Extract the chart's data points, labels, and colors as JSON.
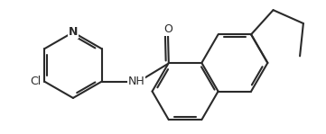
{
  "background_color": "#ffffff",
  "line_color": "#2a2a2a",
  "line_width": 1.5,
  "font_size_N": 9,
  "font_size_Cl": 9,
  "font_size_O": 9,
  "font_size_NH": 9,
  "figsize": [
    3.61,
    1.49
  ],
  "dpi": 100,
  "xlim": [
    -4.5,
    4.2
  ],
  "ylim": [
    -1.6,
    1.6
  ]
}
